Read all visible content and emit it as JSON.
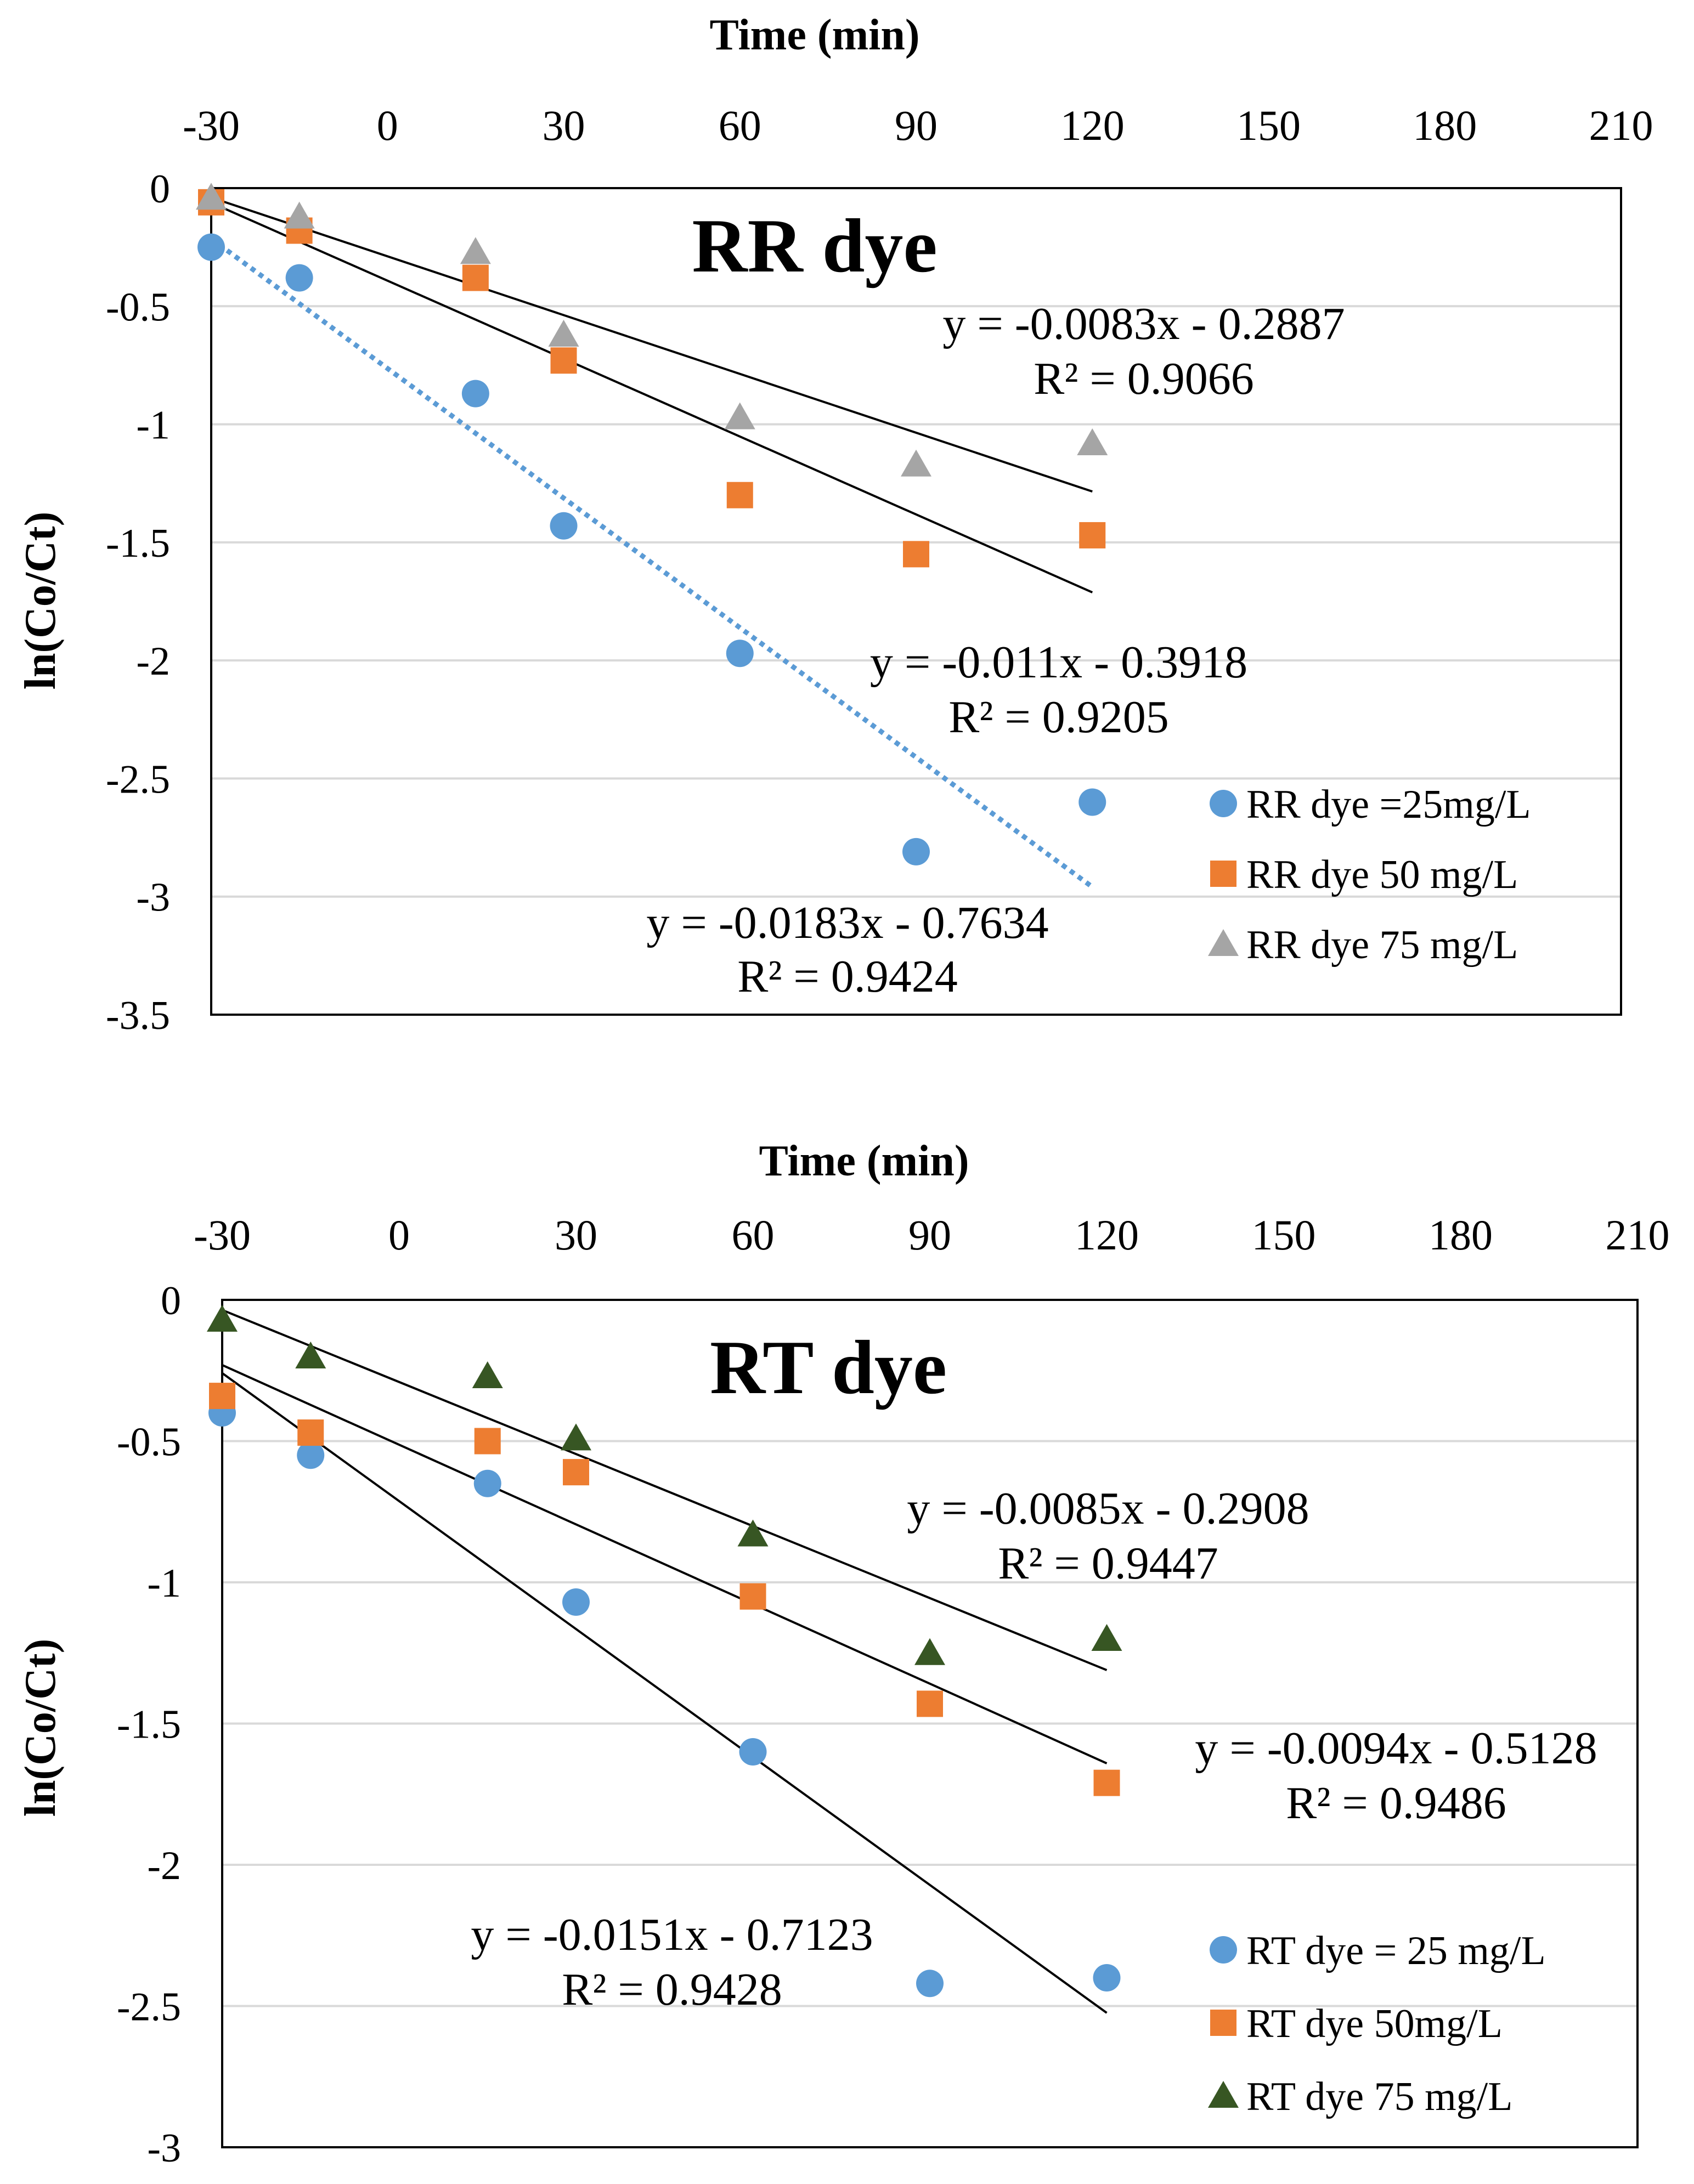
{
  "chart_data": [
    {
      "type": "scatter",
      "title": "RR dye",
      "xlabel": "Time (min)",
      "ylabel": "ln(Co/Ct)",
      "xlim": [
        -30,
        210
      ],
      "ylim": [
        -3.5,
        0
      ],
      "xticks": [
        -30,
        0,
        30,
        60,
        90,
        120,
        150,
        180,
        210
      ],
      "yticks": [
        0,
        -0.5,
        -1,
        -1.5,
        -2,
        -2.5,
        -3,
        -3.5
      ],
      "xaxis_position": "top",
      "grid": "horizontal",
      "legend_position": "bottom-right",
      "series": [
        {
          "name": "RR dye =25mg/L",
          "marker": "circle",
          "color": "#5B9BD5",
          "points": [
            [
              -30,
              -0.25
            ],
            [
              -15,
              -0.38
            ],
            [
              15,
              -0.87
            ],
            [
              30,
              -1.43
            ],
            [
              60,
              -1.97
            ],
            [
              90,
              -2.81
            ],
            [
              120,
              -2.6
            ]
          ],
          "trendline": {
            "slope": -0.0183,
            "intercept": -0.7634,
            "style": "dotted",
            "color": "#5B9BD5",
            "x_range": [
              -30,
              120
            ],
            "equation": "y = -0.0183x - 0.7634",
            "r2": "R² = 0.9424"
          }
        },
        {
          "name": "RR dye 50 mg/L",
          "marker": "square",
          "color": "#ED7D31",
          "points": [
            [
              -30,
              -0.06
            ],
            [
              -15,
              -0.18
            ],
            [
              15,
              -0.38
            ],
            [
              30,
              -0.73
            ],
            [
              60,
              -1.3
            ],
            [
              90,
              -1.55
            ],
            [
              120,
              -1.47
            ]
          ],
          "trendline": {
            "slope": -0.011,
            "intercept": -0.3918,
            "style": "solid",
            "color": "#000000",
            "x_range": [
              -30,
              120
            ],
            "equation": "y = -0.011x - 0.3918",
            "r2": "R² = 0.9205"
          }
        },
        {
          "name": "RR dye 75 mg/L",
          "marker": "triangle",
          "color": "#A5A5A5",
          "points": [
            [
              -30,
              -0.04
            ],
            [
              -15,
              -0.12
            ],
            [
              15,
              -0.27
            ],
            [
              30,
              -0.62
            ],
            [
              60,
              -0.97
            ],
            [
              90,
              -1.17
            ],
            [
              120,
              -1.08
            ]
          ],
          "trendline": {
            "slope": -0.0083,
            "intercept": -0.2887,
            "style": "solid",
            "color": "#000000",
            "x_range": [
              -30,
              120
            ],
            "equation": "y = -0.0083x - 0.2887",
            "r2": "R² = 0.9066"
          }
        }
      ]
    },
    {
      "type": "scatter",
      "title": "RT dye",
      "xlabel": "Time (min)",
      "ylabel": "ln(Co/Ct)",
      "xlim": [
        -30,
        210
      ],
      "ylim": [
        -3,
        0
      ],
      "xticks": [
        -30,
        0,
        30,
        60,
        90,
        120,
        150,
        180,
        210
      ],
      "yticks": [
        0,
        -0.5,
        -1,
        -1.5,
        -2,
        -2.5,
        -3
      ],
      "xaxis_position": "top",
      "grid": "horizontal",
      "legend_position": "bottom-right",
      "series": [
        {
          "name": "RT dye = 25 mg/L",
          "marker": "circle",
          "color": "#5B9BD5",
          "points": [
            [
              -30,
              -0.4
            ],
            [
              -15,
              -0.55
            ],
            [
              15,
              -0.65
            ],
            [
              30,
              -1.07
            ],
            [
              60,
              -1.6
            ],
            [
              90,
              -2.42
            ],
            [
              120,
              -2.4
            ]
          ],
          "trendline": {
            "slope": -0.0151,
            "intercept": -0.7123,
            "style": "solid",
            "color": "#000000",
            "x_range": [
              -30,
              120
            ],
            "equation": "y = -0.0151x - 0.7123",
            "r2": "R² = 0.9428"
          }
        },
        {
          "name": "RT dye  50mg/L",
          "marker": "square",
          "color": "#ED7D31",
          "points": [
            [
              -30,
              -0.34
            ],
            [
              -15,
              -0.47
            ],
            [
              15,
              -0.5
            ],
            [
              30,
              -0.61
            ],
            [
              60,
              -1.05
            ],
            [
              90,
              -1.43
            ],
            [
              120,
              -1.71
            ]
          ],
          "trendline": {
            "slope": -0.0094,
            "intercept": -0.5128,
            "style": "solid",
            "color": "#000000",
            "x_range": [
              -30,
              120
            ],
            "equation": "y = -0.0094x - 0.5128",
            "r2": "R² = 0.9486"
          }
        },
        {
          "name": "RT dye 75 mg/L",
          "marker": "triangle",
          "color": "#375623",
          "points": [
            [
              -30,
              -0.07
            ],
            [
              -15,
              -0.2
            ],
            [
              15,
              -0.27
            ],
            [
              30,
              -0.49
            ],
            [
              60,
              -0.83
            ],
            [
              90,
              -1.25
            ],
            [
              120,
              -1.2
            ]
          ],
          "trendline": {
            "slope": -0.0085,
            "intercept": -0.2908,
            "style": "solid",
            "color": "#000000",
            "x_range": [
              -30,
              120
            ],
            "equation": "y = -0.0085x - 0.2908",
            "r2": "R² = 0.9447"
          }
        }
      ]
    }
  ]
}
